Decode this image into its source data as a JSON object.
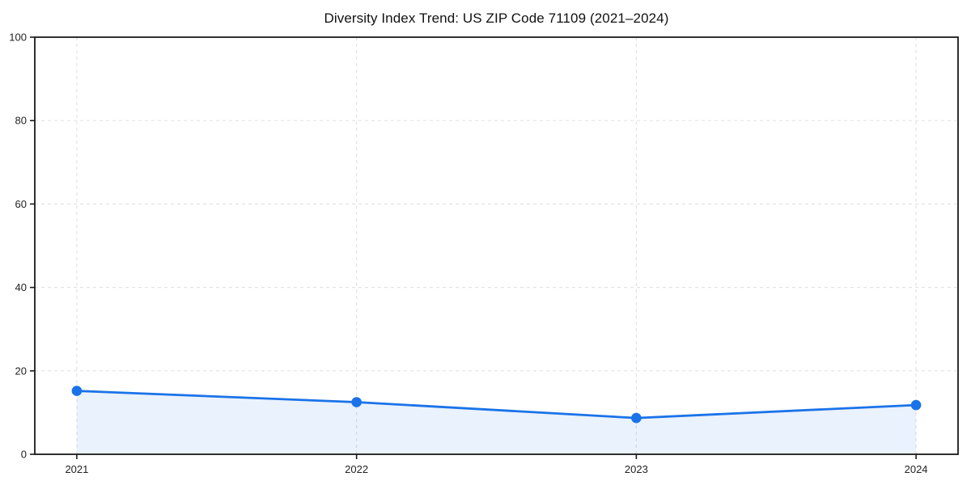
{
  "chart_data": {
    "type": "area",
    "title": "Diversity Index Trend: US ZIP Code 71109 (2021–2024)",
    "categories": [
      "2021",
      "2022",
      "2023",
      "2024"
    ],
    "series": [
      {
        "name": "Diversity Index",
        "values": [
          15.2,
          12.5,
          8.7,
          11.8
        ]
      }
    ],
    "xlabel": "",
    "ylabel": "",
    "ylim": [
      0,
      100
    ],
    "yticks": [
      0,
      20,
      40,
      60,
      80,
      100
    ],
    "grid": true,
    "grid_style": "dashed",
    "legend": false,
    "marker": "circle",
    "colors": {
      "line": "#1a73e8",
      "marker": "#1a73e8",
      "fill": "rgba(26,115,232,0.09)",
      "grid": "#e3e3e3",
      "spine": "#1a1a1a",
      "tick_label": "#222222",
      "background": "#ffffff"
    }
  }
}
